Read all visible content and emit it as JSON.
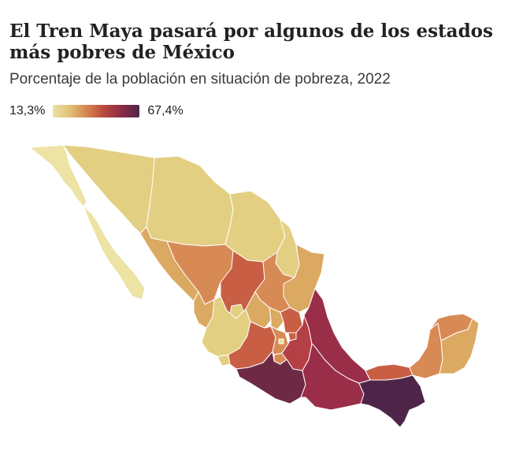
{
  "title": "El Tren Maya pasará por algunos de los estados más pobres de México",
  "subtitle": "Porcentaje de la población en situación de pobreza, 2022",
  "legend": {
    "min_label": "13,3%",
    "max_label": "67,4%",
    "colors": [
      "#ece3a4",
      "#e0c075",
      "#d4834f",
      "#b8463f",
      "#8a2b45",
      "#4e2548"
    ]
  },
  "colors": {
    "lightest": "#ece3a4",
    "light": "#e3cf82",
    "mid_light": "#dba962",
    "orange": "#d88a55",
    "red_orange": "#c85f45",
    "red": "#b43f45",
    "crimson": "#9a2e48",
    "plum": "#6e2a45",
    "darkest": "#4e2548"
  }
}
